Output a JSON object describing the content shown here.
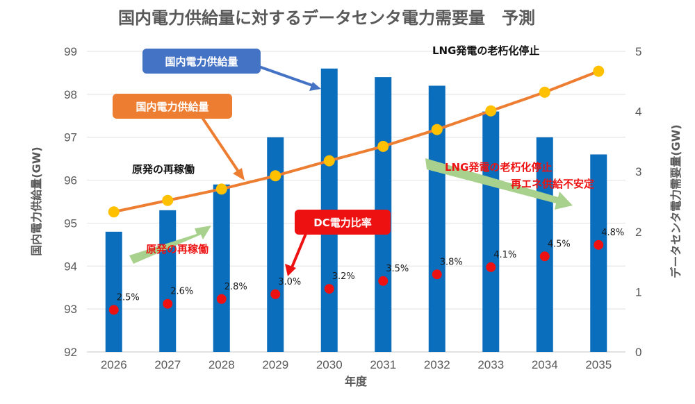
{
  "chart_data": {
    "type": "bar",
    "title": "国内電力供給量に対するデータセンタ電力需要量　予測",
    "xlabel": "年度",
    "ylabel_left": "国内電力供給量(GW)",
    "ylabel_right": "データセンタ電力需要量(GW)",
    "categories": [
      "2026",
      "2027",
      "2028",
      "2029",
      "2030",
      "2031",
      "2032",
      "2033",
      "2034",
      "2035"
    ],
    "ylim_left": [
      92,
      99
    ],
    "yticks_left": [
      92,
      93,
      94,
      95,
      96,
      97,
      98,
      99
    ],
    "ylim_right": [
      0,
      5
    ],
    "yticks_right": [
      0,
      1,
      2,
      3,
      4,
      5
    ],
    "grid": true,
    "series": [
      {
        "name": "国内電力供給量",
        "type": "bar",
        "axis": "left",
        "color": "#0a6ebd",
        "values": [
          94.8,
          95.3,
          95.9,
          97.0,
          98.6,
          98.4,
          98.2,
          97.6,
          97.0,
          96.6
        ]
      },
      {
        "name": "データセンタ電力需要量",
        "type": "line",
        "axis": "right",
        "color": "#ed7d31",
        "marker_color": "#ffc000",
        "values": [
          2.33,
          2.52,
          2.71,
          2.93,
          3.18,
          3.42,
          3.7,
          4.01,
          4.32,
          4.67
        ]
      },
      {
        "name": "DC電力比率",
        "type": "scatter",
        "axis": "right",
        "color": "#ee1111",
        "values": [
          0.7,
          0.8,
          0.88,
          0.96,
          1.05,
          1.18,
          1.29,
          1.41,
          1.59,
          1.78
        ],
        "labels": [
          "2.5%",
          "2.6%",
          "2.8%",
          "3.0%",
          "3.2%",
          "3.5%",
          "3.8%",
          "4.1%",
          "4.5%",
          "4.8%"
        ]
      }
    ],
    "annotations": {
      "callout_blue": "国内電力供給量",
      "callout_orange": "国内電力供給量",
      "callout_red": "DC電力比率",
      "note_restart_black": "原発の再稼働",
      "note_restart_red": "原発の再稼働",
      "note_lng_black": "LNG発電の老朽化停止",
      "note_lng_red_1": "LNG発電の老朽化停止",
      "note_lng_red_2": "再エネ供給不安定"
    }
  }
}
